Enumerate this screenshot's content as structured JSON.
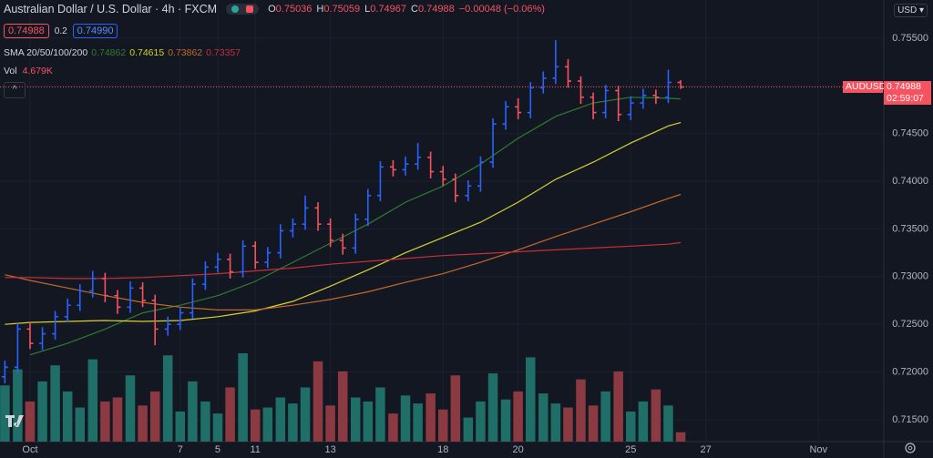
{
  "chart_data": {
    "type": "ohlc",
    "title": "Australian Dollar / U.S. Dollar · 4h · FXCM",
    "ohlc_legend": [
      {
        "label": "O",
        "value": "0.75036"
      },
      {
        "label": "H",
        "value": "0.75059"
      },
      {
        "label": "L",
        "value": "0.74967"
      },
      {
        "label": "C",
        "value": "0.74988"
      },
      {
        "label": "",
        "value": "−0.00048 (−0.06%)"
      }
    ],
    "quote": {
      "bid": "0.74988",
      "spread": "0.2",
      "ask": "0.74990"
    },
    "currency": "USD",
    "up_color": "#2962ff",
    "down_color": "#f7525f",
    "x": [
      -0.67,
      -0.33,
      0,
      0.33,
      0.67,
      1,
      1.33,
      1.67,
      2,
      2.33,
      2.67,
      3,
      3.33,
      3.67,
      4,
      4.33,
      4.67,
      5,
      5.33,
      5.67,
      6,
      6.33,
      6.67,
      7,
      7.33,
      7.67,
      8,
      8.33,
      8.67,
      9,
      9.33,
      9.67,
      10,
      10.33,
      10.67,
      11,
      11.33,
      11.67,
      12,
      12.33,
      12.67,
      13,
      13.33,
      13.67,
      14,
      14.33,
      14.67,
      15,
      15.33,
      15.67,
      16,
      16.33,
      16.67,
      17,
      17.33
    ],
    "open": [
      0.7195,
      0.7205,
      0.7245,
      0.723,
      0.724,
      0.7258,
      0.727,
      0.7285,
      0.7298,
      0.728,
      0.7268,
      0.7288,
      0.7275,
      0.7245,
      0.725,
      0.7262,
      0.7292,
      0.731,
      0.7318,
      0.7305,
      0.7332,
      0.7315,
      0.7325,
      0.7348,
      0.7355,
      0.7372,
      0.7355,
      0.7338,
      0.733,
      0.736,
      0.7385,
      0.7415,
      0.7412,
      0.7418,
      0.7425,
      0.741,
      0.7402,
      0.7385,
      0.7395,
      0.742,
      0.746,
      0.7478,
      0.7472,
      0.7498,
      0.7508,
      0.752,
      0.7505,
      0.7488,
      0.7472,
      0.7495,
      0.747,
      0.7482,
      0.749,
      0.7488,
      0.75036
    ],
    "high": [
      0.7212,
      0.7251,
      0.7252,
      0.7247,
      0.7264,
      0.7277,
      0.7292,
      0.7306,
      0.7304,
      0.7286,
      0.7295,
      0.7294,
      0.7281,
      0.7258,
      0.7268,
      0.7298,
      0.7316,
      0.7325,
      0.7324,
      0.7338,
      0.7337,
      0.7331,
      0.7355,
      0.7361,
      0.7385,
      0.7378,
      0.7361,
      0.7345,
      0.7366,
      0.7392,
      0.7421,
      0.7422,
      0.7426,
      0.744,
      0.7431,
      0.7416,
      0.7408,
      0.7401,
      0.7426,
      0.7466,
      0.7484,
      0.7487,
      0.7504,
      0.7515,
      0.7548,
      0.7528,
      0.751,
      0.7493,
      0.7501,
      0.75,
      0.7489,
      0.7497,
      0.7496,
      0.7517,
      0.75059
    ],
    "low": [
      0.7188,
      0.7199,
      0.7224,
      0.7223,
      0.7234,
      0.7252,
      0.7264,
      0.7278,
      0.7273,
      0.7261,
      0.7262,
      0.7268,
      0.7228,
      0.7238,
      0.7244,
      0.7256,
      0.7286,
      0.7304,
      0.7298,
      0.7299,
      0.7308,
      0.7309,
      0.7319,
      0.7341,
      0.7349,
      0.7348,
      0.7331,
      0.7323,
      0.7324,
      0.7353,
      0.7379,
      0.7405,
      0.7406,
      0.7412,
      0.7403,
      0.7395,
      0.7378,
      0.7379,
      0.7389,
      0.7414,
      0.7454,
      0.7465,
      0.7466,
      0.7492,
      0.7502,
      0.7498,
      0.7481,
      0.7465,
      0.7466,
      0.7463,
      0.7464,
      0.7476,
      0.7481,
      0.7482,
      0.74967
    ],
    "close": [
      0.7205,
      0.7245,
      0.723,
      0.724,
      0.7258,
      0.727,
      0.7285,
      0.7298,
      0.728,
      0.7268,
      0.7288,
      0.7275,
      0.7245,
      0.725,
      0.7262,
      0.7292,
      0.731,
      0.7318,
      0.7305,
      0.7332,
      0.7315,
      0.7325,
      0.7348,
      0.7355,
      0.7372,
      0.7355,
      0.7338,
      0.733,
      0.736,
      0.7385,
      0.7415,
      0.7412,
      0.7418,
      0.7425,
      0.741,
      0.7402,
      0.7385,
      0.7395,
      0.742,
      0.746,
      0.7478,
      0.7472,
      0.7498,
      0.7508,
      0.752,
      0.7505,
      0.7488,
      0.7472,
      0.7495,
      0.747,
      0.7482,
      0.749,
      0.7488,
      0.75036,
      0.74988
    ],
    "xlim": [
      -0.8,
      22.74
    ],
    "xticks": [
      {
        "value": 0,
        "label": "Oct"
      },
      5,
      {
        "value": 4,
        "label": "7"
      },
      {
        "value": 6,
        "label": "11"
      },
      {
        "value": 8,
        "label": "13"
      },
      {
        "value": 11,
        "label": "18"
      },
      {
        "value": 13,
        "label": "20"
      },
      {
        "value": 16,
        "label": "25"
      },
      {
        "value": 18,
        "label": "27"
      },
      {
        "value": 21,
        "label": "Nov"
      }
    ],
    "ylim": [
      0.7127,
      0.759
    ],
    "yticks": [
      {
        "value": 0.715,
        "label": "0.71500"
      },
      {
        "value": 0.72,
        "label": "0.72000"
      },
      {
        "value": 0.725,
        "label": "0.72500"
      },
      {
        "value": 0.73,
        "label": "0.73000"
      },
      {
        "value": 0.735,
        "label": "0.73500"
      },
      {
        "value": 0.74,
        "label": "0.74000"
      },
      {
        "value": 0.745,
        "label": "0.74500"
      },
      {
        "value": 0.75,
        "label": "0.75000"
      },
      {
        "value": 0.755,
        "label": "0.75500"
      }
    ],
    "indicators": {
      "label": "SMA 20/50/100/200",
      "series": [
        {
          "color": "#2e7d32",
          "value_label": "0.74862",
          "x": [
            0,
            1,
            2,
            3,
            4,
            5,
            6,
            7,
            8,
            9,
            10,
            11,
            12,
            13,
            14,
            15,
            16,
            17,
            17.33
          ],
          "values": [
            0.7218,
            0.723,
            0.7245,
            0.7262,
            0.727,
            0.728,
            0.7295,
            0.7315,
            0.7335,
            0.7355,
            0.7378,
            0.7395,
            0.7418,
            0.7445,
            0.7468,
            0.7482,
            0.7488,
            0.7487,
            0.74862
          ]
        },
        {
          "color": "#d6d22e",
          "value_label": "0.74615",
          "x": [
            -0.67,
            0,
            1,
            2,
            3,
            4,
            5,
            6,
            7,
            8,
            9,
            10,
            11,
            12,
            13,
            14,
            15,
            16,
            17,
            17.33
          ],
          "values": [
            0.725,
            0.7252,
            0.7253,
            0.7254,
            0.7253,
            0.7254,
            0.7258,
            0.7264,
            0.7274,
            0.729,
            0.7307,
            0.7325,
            0.7341,
            0.7357,
            0.7378,
            0.7402,
            0.742,
            0.744,
            0.7458,
            0.74615
          ]
        },
        {
          "color": "#c4692b",
          "value_label": "0.73862",
          "x": [
            -0.67,
            0,
            1,
            2,
            3,
            4,
            5,
            6,
            7,
            8,
            9,
            10,
            11,
            12,
            13,
            14,
            15,
            16,
            17,
            17.33
          ],
          "values": [
            0.7302,
            0.7296,
            0.7288,
            0.728,
            0.7273,
            0.7268,
            0.7265,
            0.7265,
            0.727,
            0.7276,
            0.7284,
            0.7294,
            0.7303,
            0.7315,
            0.7328,
            0.7342,
            0.7355,
            0.7368,
            0.7382,
            0.73862
          ]
        },
        {
          "color": "#c62f38",
          "value_label": "0.73357",
          "x": [
            -0.67,
            0,
            1,
            2,
            3,
            4,
            5,
            6,
            7,
            8,
            9,
            10,
            11,
            12,
            13,
            14,
            15,
            16,
            17,
            17.33
          ],
          "values": [
            0.7299,
            0.7299,
            0.7298,
            0.7298,
            0.7299,
            0.7301,
            0.7303,
            0.7306,
            0.7309,
            0.7313,
            0.7316,
            0.7319,
            0.7322,
            0.7324,
            0.7326,
            0.7328,
            0.733,
            0.7332,
            0.7334,
            0.73357
          ]
        }
      ]
    },
    "volume": {
      "label": "Vol",
      "value_label": "4.679K",
      "up_color": "#1f6e67",
      "down_color": "#8b3a41",
      "values": [
        28000,
        36000,
        20000,
        30000,
        38000,
        25000,
        17000,
        41000,
        20000,
        22000,
        33000,
        18000,
        25000,
        43000,
        15000,
        30000,
        20000,
        14000,
        27000,
        44000,
        16000,
        17000,
        22000,
        19000,
        27000,
        40000,
        18000,
        35000,
        22000,
        20000,
        27000,
        14000,
        23000,
        19000,
        24000,
        16000,
        33000,
        12000,
        20000,
        34000,
        21000,
        25000,
        42000,
        24000,
        19000,
        17000,
        31000,
        18000,
        25000,
        35000,
        15000,
        20000,
        26000,
        18000,
        4679
      ]
    },
    "price_tag": {
      "symbol": "AUDUSD",
      "price": "0.74988",
      "countdown": "02:59:07"
    }
  }
}
